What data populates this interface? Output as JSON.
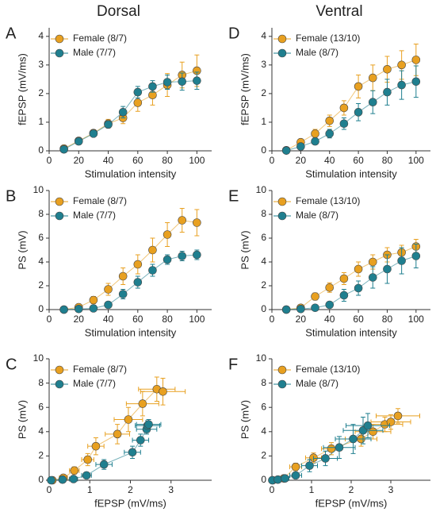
{
  "chart_data": [
    {
      "type": "line",
      "panel": "A",
      "title": "Dorsal",
      "x_label": "Stimulation intensity",
      "y_label": "fEPSP (mV/ms)",
      "x": [
        10,
        20,
        30,
        40,
        50,
        60,
        70,
        80,
        90,
        100
      ],
      "xlim": [
        0,
        110
      ],
      "xticks": [
        0,
        20,
        40,
        60,
        80,
        100
      ],
      "ylim": [
        0,
        4.3
      ],
      "yticks": [
        0,
        1,
        2,
        3,
        4
      ],
      "legend": "upper left",
      "series": [
        {
          "name": "Female (8/7)",
          "color": "#e8a020",
          "values": [
            0.08,
            0.35,
            0.62,
            0.95,
            1.15,
            1.68,
            1.95,
            2.3,
            2.65,
            2.8
          ],
          "errors": [
            0.05,
            0.1,
            0.12,
            0.15,
            0.2,
            0.3,
            0.35,
            0.4,
            0.45,
            0.55
          ]
        },
        {
          "name": "Male (7/7)",
          "color": "#1f7f8f",
          "values": [
            0.05,
            0.33,
            0.6,
            0.92,
            1.35,
            2.05,
            2.25,
            2.4,
            2.42,
            2.45
          ],
          "errors": [
            0.03,
            0.08,
            0.1,
            0.12,
            0.2,
            0.2,
            0.2,
            0.25,
            0.3,
            0.3
          ]
        }
      ]
    },
    {
      "type": "line",
      "panel": "B",
      "x_label": "Stimulation intensity",
      "y_label": "PS (mV)",
      "x": [
        10,
        20,
        30,
        40,
        50,
        60,
        70,
        80,
        90,
        100
      ],
      "xlim": [
        0,
        110
      ],
      "xticks": [
        0,
        20,
        40,
        60,
        80,
        100
      ],
      "ylim": [
        0,
        10
      ],
      "yticks": [
        0,
        2,
        4,
        6,
        8,
        10
      ],
      "legend": "upper left",
      "series": [
        {
          "name": "Female (8/7)",
          "color": "#e8a020",
          "values": [
            0,
            0.2,
            0.8,
            1.7,
            2.8,
            3.8,
            5.0,
            6.3,
            7.5,
            7.3
          ],
          "errors": [
            0,
            0.1,
            0.3,
            0.5,
            0.7,
            0.8,
            1.0,
            1.0,
            1.0,
            1.1
          ]
        },
        {
          "name": "Male (7/7)",
          "color": "#1f7f8f",
          "values": [
            0,
            0.05,
            0.1,
            0.4,
            1.3,
            2.3,
            3.3,
            4.2,
            4.5,
            4.6
          ],
          "errors": [
            0,
            0.03,
            0.05,
            0.2,
            0.4,
            0.5,
            0.5,
            0.4,
            0.4,
            0.4
          ]
        }
      ]
    },
    {
      "type": "scatter",
      "panel": "C",
      "x_label": "fEPSP (mV/ms)",
      "y_label": "PS (mV)",
      "xlim": [
        0,
        4
      ],
      "xticks": [
        0,
        1,
        2,
        3
      ],
      "ylim": [
        0,
        10
      ],
      "yticks": [
        0,
        2,
        4,
        6,
        8,
        10
      ],
      "legend": "upper left",
      "series": [
        {
          "name": "Female (8/7)",
          "color": "#e8a020",
          "x": [
            0.08,
            0.35,
            0.62,
            0.95,
            1.15,
            1.68,
            1.95,
            2.3,
            2.65,
            2.8
          ],
          "x_errors": [
            0.05,
            0.1,
            0.12,
            0.15,
            0.2,
            0.3,
            0.35,
            0.4,
            0.45,
            0.55
          ],
          "values": [
            0,
            0.2,
            0.8,
            1.7,
            2.8,
            3.8,
            5.0,
            6.3,
            7.5,
            7.3
          ],
          "errors": [
            0,
            0.1,
            0.3,
            0.5,
            0.7,
            0.8,
            1.0,
            1.0,
            1.0,
            1.1
          ]
        },
        {
          "name": "Male (7/7)",
          "color": "#1f7f8f",
          "x": [
            0.05,
            0.33,
            0.6,
            0.92,
            1.35,
            2.05,
            2.25,
            2.4,
            2.42,
            2.45
          ],
          "x_errors": [
            0.03,
            0.08,
            0.1,
            0.12,
            0.2,
            0.2,
            0.2,
            0.25,
            0.3,
            0.3
          ],
          "values": [
            0,
            0.05,
            0.1,
            0.4,
            1.3,
            2.3,
            3.3,
            4.2,
            4.5,
            4.6
          ],
          "errors": [
            0,
            0.03,
            0.05,
            0.2,
            0.4,
            0.5,
            0.5,
            0.4,
            0.4,
            0.4
          ]
        }
      ]
    },
    {
      "type": "line",
      "panel": "D",
      "title": "Ventral",
      "x_label": "Stimulation intensity",
      "y_label": "fEPSP (mV/ms)",
      "x": [
        10,
        20,
        30,
        40,
        50,
        60,
        70,
        80,
        90,
        100
      ],
      "xlim": [
        0,
        110
      ],
      "xticks": [
        0,
        20,
        40,
        60,
        80,
        100
      ],
      "ylim": [
        0,
        4.3
      ],
      "yticks": [
        0,
        1,
        2,
        3,
        4
      ],
      "legend": "upper left",
      "series": [
        {
          "name": "Female (13/10)",
          "color": "#e8a020",
          "values": [
            0.02,
            0.3,
            0.6,
            1.05,
            1.5,
            2.25,
            2.55,
            2.85,
            3.0,
            3.18
          ],
          "errors": [
            0.02,
            0.1,
            0.15,
            0.2,
            0.25,
            0.4,
            0.45,
            0.45,
            0.5,
            0.55
          ]
        },
        {
          "name": "Male (8/7)",
          "color": "#1f7f8f",
          "values": [
            0.01,
            0.15,
            0.33,
            0.6,
            0.95,
            1.35,
            1.7,
            2.05,
            2.3,
            2.42
          ],
          "errors": [
            0.01,
            0.08,
            0.1,
            0.15,
            0.2,
            0.3,
            0.4,
            0.45,
            0.5,
            0.55
          ]
        }
      ]
    },
    {
      "type": "line",
      "panel": "E",
      "x_label": "Stimulation intensity",
      "y_label": "PS (mV)",
      "x": [
        10,
        20,
        30,
        40,
        50,
        60,
        70,
        80,
        90,
        100
      ],
      "xlim": [
        0,
        110
      ],
      "xticks": [
        0,
        20,
        40,
        60,
        80,
        100
      ],
      "ylim": [
        0,
        10
      ],
      "yticks": [
        0,
        2,
        4,
        6,
        8,
        10
      ],
      "legend": "upper left",
      "series": [
        {
          "name": "Female (13/10)",
          "color": "#e8a020",
          "values": [
            0,
            0.15,
            1.1,
            1.85,
            2.6,
            3.4,
            4.0,
            4.6,
            4.8,
            5.3
          ],
          "errors": [
            0,
            0.1,
            0.3,
            0.4,
            0.5,
            0.6,
            0.6,
            0.6,
            0.6,
            0.6
          ]
        },
        {
          "name": "Male (8/7)",
          "color": "#1f7f8f",
          "values": [
            0,
            0.05,
            0.15,
            0.4,
            1.2,
            1.8,
            2.7,
            3.4,
            4.1,
            4.5
          ],
          "errors": [
            0,
            0.03,
            0.1,
            0.2,
            0.5,
            0.6,
            0.9,
            1.2,
            1.1,
            1.0
          ]
        }
      ]
    },
    {
      "type": "scatter",
      "panel": "F",
      "x_label": "fEPSP (mV/ms)",
      "y_label": "PS (mV)",
      "xlim": [
        0,
        4
      ],
      "xticks": [
        0,
        1,
        2,
        3
      ],
      "ylim": [
        0,
        10
      ],
      "yticks": [
        0,
        2,
        4,
        6,
        8,
        10
      ],
      "legend": "upper left",
      "series": [
        {
          "name": "Female (13/10)",
          "color": "#e8a020",
          "x": [
            0.02,
            0.3,
            0.6,
            1.05,
            1.5,
            2.25,
            2.55,
            2.85,
            3.0,
            3.18
          ],
          "x_errors": [
            0.02,
            0.1,
            0.15,
            0.2,
            0.25,
            0.4,
            0.45,
            0.45,
            0.5,
            0.55
          ],
          "values": [
            0,
            0.15,
            1.1,
            1.85,
            2.6,
            3.4,
            4.0,
            4.6,
            4.8,
            5.3
          ],
          "errors": [
            0,
            0.1,
            0.3,
            0.4,
            0.5,
            0.6,
            0.6,
            0.6,
            0.6,
            0.6
          ]
        },
        {
          "name": "Male (8/7)",
          "color": "#1f7f8f",
          "x": [
            0.01,
            0.15,
            0.33,
            0.6,
            0.95,
            1.35,
            1.7,
            2.05,
            2.3,
            2.42
          ],
          "x_errors": [
            0.01,
            0.08,
            0.1,
            0.15,
            0.2,
            0.3,
            0.4,
            0.45,
            0.5,
            0.55
          ],
          "values": [
            0,
            0.05,
            0.15,
            0.4,
            1.2,
            1.8,
            2.7,
            3.4,
            4.1,
            4.5
          ],
          "errors": [
            0,
            0.03,
            0.1,
            0.2,
            0.5,
            0.6,
            0.9,
            1.2,
            1.1,
            1.0
          ]
        }
      ]
    }
  ]
}
